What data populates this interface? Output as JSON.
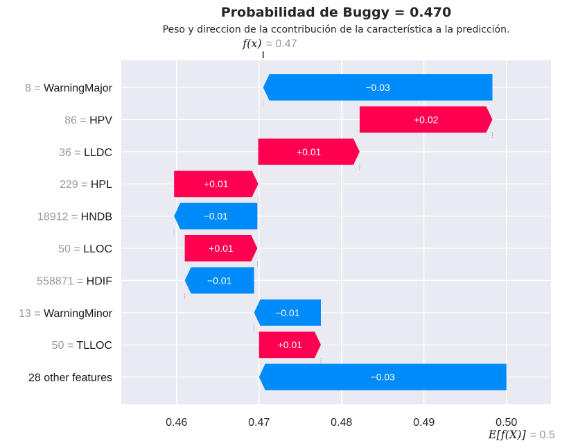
{
  "chart_data": {
    "type": "waterfall",
    "title": "Probabilidad de Buggy = 0.470",
    "subtitle": "Peso y direccion de la ccontribución de la característica a la predicción.",
    "fx_label": "f(x)",
    "fx_value_text": "= 0.47",
    "fx_value": 0.4705,
    "ex_label": "E[f(X)]",
    "ex_value_text": "= 0.5",
    "ex_value": 0.5,
    "xlim": [
      0.4533,
      0.5054
    ],
    "xticks": [
      0.46,
      0.47,
      0.48,
      0.49,
      0.5
    ],
    "xtick_labels": [
      "0.46",
      "0.47",
      "0.48",
      "0.49",
      "0.50"
    ],
    "colors": {
      "positive": "#ff0051",
      "negative": "#008bfb",
      "background": "#eaeaf2",
      "grid": "#ffffff"
    },
    "features": [
      {
        "value": "8",
        "name": "WarningMajor",
        "start": 0.4983,
        "end": 0.4705,
        "label": "−0.03"
      },
      {
        "value": "86",
        "name": "HPV",
        "start": 0.4822,
        "end": 0.4983,
        "label": "+0.02"
      },
      {
        "value": "36",
        "name": "LLDC",
        "start": 0.4699,
        "end": 0.4822,
        "label": "+0.01"
      },
      {
        "value": "229",
        "name": "HPL",
        "start": 0.4597,
        "end": 0.4699,
        "label": "+0.01"
      },
      {
        "value": "18912",
        "name": "HNDB",
        "start": 0.4698,
        "end": 0.4597,
        "label": "−0.01"
      },
      {
        "value": "50",
        "name": "LLOC",
        "start": 0.461,
        "end": 0.4698,
        "label": "+0.01"
      },
      {
        "value": "558871",
        "name": "HDIF",
        "start": 0.4694,
        "end": 0.461,
        "label": "−0.01"
      },
      {
        "value": "13",
        "name": "WarningMinor",
        "start": 0.4775,
        "end": 0.4694,
        "label": "−0.01"
      },
      {
        "value": "50",
        "name": "TLLOC",
        "start": 0.47,
        "end": 0.4775,
        "label": "+0.01"
      },
      {
        "value": "",
        "name": "28 other features",
        "start": 0.5,
        "end": 0.47,
        "label": "−0.03"
      }
    ]
  }
}
